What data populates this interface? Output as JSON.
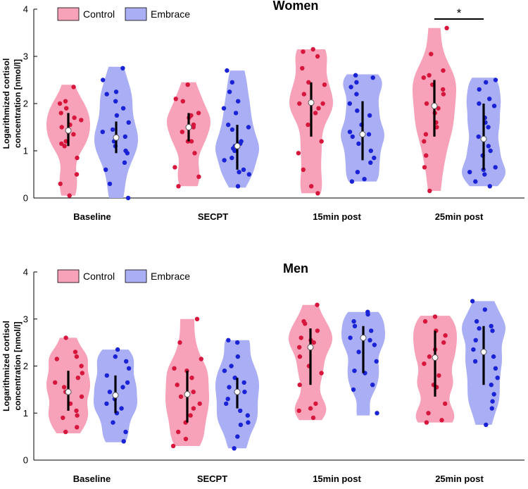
{
  "chart_data": [
    {
      "type": "violin",
      "title": "Women",
      "ylabel": [
        "Logarithmized cortisol",
        "concentration [nmol/l]"
      ],
      "ylim": [
        0,
        4
      ],
      "yticks": [
        0,
        1,
        2,
        3,
        4
      ],
      "categories": [
        "Baseline",
        "SECPT",
        "15min post",
        "25min post"
      ],
      "legend": [
        "Control",
        "Embrace"
      ],
      "colors": {
        "control_fill": "#f7a2b8",
        "control_dot": "#d6163c",
        "embrace_fill": "#a9aef5",
        "embrace_dot": "#1a22d6"
      },
      "significance": {
        "label": "*",
        "category": "25min post",
        "between": [
          "Control",
          "Embrace"
        ]
      },
      "series": [
        {
          "name": "Control",
          "groups": [
            {
              "range": [
                0.05,
                2.4
              ],
              "median": 1.43,
              "iqr": [
                1.1,
                1.8
              ],
              "points": [
                0.05,
                0.3,
                0.5,
                0.85,
                1.1,
                1.15,
                1.2,
                1.35,
                1.4,
                1.5,
                1.55,
                1.65,
                1.7,
                1.8,
                1.9,
                2.0,
                2.05,
                2.35
              ]
            },
            {
              "range": [
                0.25,
                2.45
              ],
              "median": 1.5,
              "iqr": [
                1.2,
                1.8
              ],
              "points": [
                0.25,
                0.45,
                0.65,
                0.95,
                1.2,
                1.2,
                1.4,
                1.5,
                1.55,
                1.7,
                1.75,
                1.8,
                2.05,
                2.1,
                2.4
              ]
            },
            {
              "range": [
                0.1,
                3.15
              ],
              "median": 2.02,
              "iqr": [
                1.3,
                2.45
              ],
              "points": [
                0.1,
                0.25,
                0.6,
                0.95,
                1.2,
                1.55,
                1.8,
                1.9,
                2.0,
                2.0,
                2.2,
                2.4,
                2.45,
                2.75,
                3.0,
                3.1,
                3.15
              ]
            },
            {
              "range": [
                0.15,
                3.6
              ],
              "median": 1.95,
              "iqr": [
                1.3,
                2.5
              ],
              "points": [
                0.15,
                0.65,
                0.9,
                1.2,
                1.35,
                1.5,
                1.6,
                1.8,
                1.9,
                2.0,
                2.2,
                2.3,
                2.4,
                2.55,
                2.6,
                2.7,
                3.05,
                3.6
              ]
            }
          ]
        },
        {
          "name": "Embrace",
          "groups": [
            {
              "range": [
                0.0,
                2.78
              ],
              "median": 1.28,
              "iqr": [
                0.95,
                1.62
              ],
              "points": [
                0.0,
                0.3,
                0.6,
                0.75,
                0.95,
                1.0,
                1.1,
                1.2,
                1.3,
                1.4,
                1.45,
                1.6,
                1.75,
                1.9,
                2.05,
                2.2,
                2.25,
                2.5,
                2.75
              ]
            },
            {
              "range": [
                0.22,
                2.7
              ],
              "median": 1.1,
              "iqr": [
                0.6,
                1.55
              ],
              "points": [
                0.25,
                0.5,
                0.55,
                0.6,
                0.8,
                0.85,
                1.0,
                1.05,
                1.1,
                1.15,
                1.2,
                1.45,
                1.5,
                1.55,
                1.8,
                1.9,
                2.05,
                2.25,
                2.45,
                2.7
              ]
            },
            {
              "range": [
                0.35,
                2.62
              ],
              "median": 1.35,
              "iqr": [
                0.8,
                2.05
              ],
              "points": [
                0.35,
                0.4,
                0.55,
                0.75,
                0.85,
                1.0,
                1.15,
                1.3,
                1.35,
                1.4,
                1.55,
                1.75,
                1.85,
                2.0,
                2.2,
                2.35,
                2.45,
                2.55,
                2.6
              ]
            },
            {
              "range": [
                0.25,
                2.55
              ],
              "median": 1.25,
              "iqr": [
                0.6,
                2.0
              ],
              "points": [
                0.25,
                0.35,
                0.5,
                0.55,
                0.6,
                0.65,
                0.9,
                1.0,
                1.1,
                1.3,
                1.5,
                1.6,
                1.7,
                1.95,
                2.0,
                2.1,
                2.3,
                2.45,
                2.5
              ]
            }
          ]
        }
      ]
    },
    {
      "type": "violin",
      "title": "Men",
      "ylabel": [
        "Logarithmized cortisol",
        "concentration [nmol/l]"
      ],
      "ylim": [
        0,
        4
      ],
      "yticks": [
        0,
        1,
        2,
        3,
        4
      ],
      "categories": [
        "Baseline",
        "SECPT",
        "15min post",
        "25min post"
      ],
      "legend": [
        "Control",
        "Embrace"
      ],
      "colors": {
        "control_fill": "#f7a2b8",
        "control_dot": "#d6163c",
        "embrace_fill": "#a9aef5",
        "embrace_dot": "#1a22d6"
      },
      "series": [
        {
          "name": "Control",
          "groups": [
            {
              "range": [
                0.57,
                2.6
              ],
              "median": 1.45,
              "iqr": [
                1.05,
                1.9
              ],
              "points": [
                0.6,
                0.7,
                0.9,
                0.95,
                1.05,
                1.2,
                1.35,
                1.45,
                1.55,
                1.65,
                1.75,
                1.85,
                2.0,
                2.15,
                2.2,
                2.3,
                2.6
              ]
            },
            {
              "range": [
                0.3,
                3.0
              ],
              "median": 1.4,
              "iqr": [
                0.8,
                1.9
              ],
              "points": [
                0.3,
                0.45,
                0.6,
                0.8,
                0.95,
                1.1,
                1.2,
                1.35,
                1.45,
                1.6,
                1.75,
                1.9,
                1.95,
                2.15,
                2.5,
                3.0
              ]
            },
            {
              "range": [
                0.85,
                3.3
              ],
              "median": 2.4,
              "iqr": [
                1.6,
                2.8
              ],
              "points": [
                0.9,
                1.05,
                1.1,
                1.2,
                1.6,
                1.85,
                2.0,
                2.2,
                2.4,
                2.5,
                2.55,
                2.6,
                2.75,
                2.9,
                2.95,
                3.3
              ]
            },
            {
              "range": [
                0.8,
                3.07
              ],
              "median": 2.18,
              "iqr": [
                1.35,
                2.75
              ],
              "points": [
                0.8,
                0.85,
                1.0,
                1.2,
                1.55,
                1.6,
                1.8,
                2.05,
                2.2,
                2.35,
                2.5,
                2.65,
                2.75,
                2.95,
                3.05
              ]
            }
          ]
        },
        {
          "name": "Embrace",
          "groups": [
            {
              "range": [
                0.38,
                2.35
              ],
              "median": 1.38,
              "iqr": [
                1.0,
                1.8
              ],
              "points": [
                0.4,
                0.6,
                0.8,
                1.0,
                1.1,
                1.2,
                1.3,
                1.45,
                1.55,
                1.65,
                1.8,
                1.95,
                2.1,
                2.2,
                2.35
              ]
            },
            {
              "range": [
                0.25,
                2.55
              ],
              "median": 1.45,
              "iqr": [
                1.1,
                1.75
              ],
              "points": [
                0.25,
                0.5,
                0.75,
                0.8,
                0.95,
                1.05,
                1.2,
                1.3,
                1.45,
                1.55,
                1.65,
                1.75,
                1.9,
                2.0,
                2.2,
                2.5,
                2.55
              ]
            },
            {
              "range": [
                0.95,
                3.15
              ],
              "median": 2.6,
              "iqr": [
                1.85,
                2.85
              ],
              "points": [
                1.0,
                1.5,
                1.6,
                1.85,
                1.9,
                2.1,
                2.3,
                2.45,
                2.55,
                2.6,
                2.75,
                2.85,
                2.95,
                3.1,
                3.15
              ]
            },
            {
              "range": [
                0.75,
                3.38
              ],
              "median": 2.3,
              "iqr": [
                1.6,
                2.85
              ],
              "points": [
                0.75,
                1.1,
                1.25,
                1.4,
                1.6,
                1.75,
                1.95,
                2.1,
                2.2,
                2.35,
                2.55,
                2.75,
                2.8,
                2.85,
                2.95,
                3.2,
                3.38
              ]
            }
          ]
        }
      ]
    }
  ]
}
